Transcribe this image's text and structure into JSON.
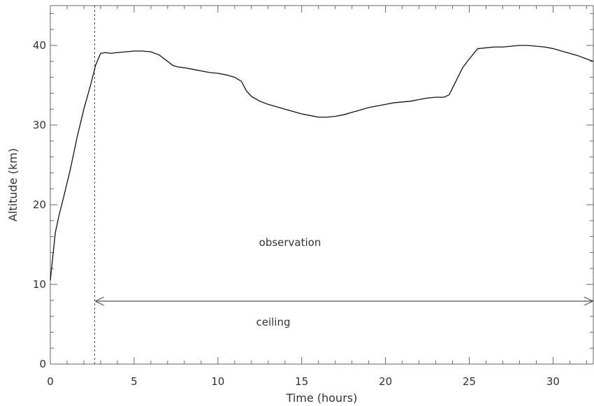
{
  "chart_data": {
    "type": "line",
    "title": "",
    "xlabel": "Time (hours)",
    "ylabel": "Altitude (km)",
    "xlim": [
      0,
      32.4
    ],
    "ylim": [
      0,
      45
    ],
    "xticks": [
      0,
      5,
      10,
      15,
      20,
      25,
      30
    ],
    "yticks": [
      0,
      10,
      20,
      30,
      40
    ],
    "grid": false,
    "legend": "none",
    "series": [
      {
        "x": [
          0,
          0.15,
          0.3,
          0.5,
          0.8,
          1.2,
          1.6,
          2.0,
          2.4,
          2.7,
          2.9,
          3.0,
          3.3,
          3.6,
          4.0,
          4.5,
          5.0,
          5.5,
          6.0,
          6.5,
          7.0,
          7.3,
          7.6,
          8.0,
          8.5,
          9.0,
          9.5,
          10.0,
          10.5,
          11.0,
          11.4,
          11.7,
          12.0,
          12.5,
          13.0,
          13.5,
          14.0,
          14.5,
          15.0,
          15.5,
          16.0,
          16.5,
          17.0,
          17.5,
          18.0,
          18.5,
          19.0,
          19.5,
          20.0,
          20.5,
          21.0,
          21.5,
          22.0,
          22.5,
          23.0,
          23.5,
          23.8,
          24.2,
          24.6,
          25.0,
          25.5,
          26.0,
          26.5,
          27.0,
          27.5,
          28.0,
          28.5,
          29.0,
          29.5,
          30.0,
          30.5,
          31.0,
          31.5,
          32.0,
          32.4
        ],
        "y": [
          10.5,
          13.5,
          16.5,
          18.5,
          21.0,
          24.5,
          28.5,
          32.0,
          35.0,
          37.5,
          38.5,
          39.0,
          39.1,
          39.0,
          39.1,
          39.2,
          39.3,
          39.3,
          39.2,
          38.8,
          38.0,
          37.5,
          37.3,
          37.2,
          37.0,
          36.8,
          36.6,
          36.5,
          36.3,
          36.0,
          35.5,
          34.3,
          33.6,
          33.0,
          32.6,
          32.3,
          32.0,
          31.7,
          31.4,
          31.2,
          31.0,
          31.0,
          31.1,
          31.3,
          31.6,
          31.9,
          32.2,
          32.4,
          32.6,
          32.8,
          32.9,
          33.0,
          33.2,
          33.4,
          33.5,
          33.5,
          33.8,
          35.5,
          37.2,
          38.3,
          39.6,
          39.7,
          39.8,
          39.8,
          39.9,
          40.0,
          40.0,
          39.9,
          39.8,
          39.6,
          39.3,
          39.0,
          38.7,
          38.3,
          38.0
        ]
      }
    ],
    "ceiling_marker_x": 2.65,
    "annotations": {
      "observation": "observation",
      "ceiling": "ceiling"
    }
  }
}
